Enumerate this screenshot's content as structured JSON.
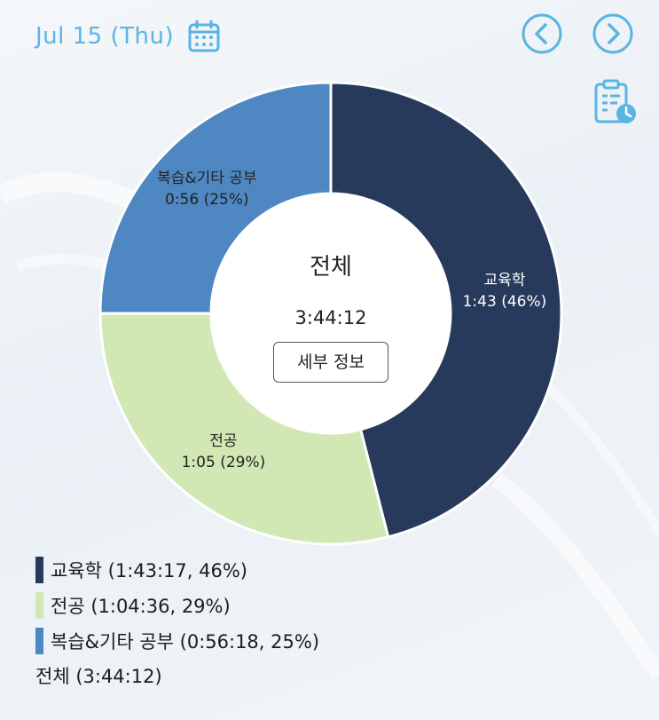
{
  "header": {
    "date": "Jul 15 (Thu)",
    "calendar_icon": "calendar-icon",
    "prev_icon": "chevron-left-circle-icon",
    "next_icon": "chevron-right-circle-icon",
    "log_icon": "clipboard-clock-icon",
    "accent_color": "#5bb4e3"
  },
  "chart_data": {
    "type": "pie",
    "style": "donut",
    "center_title": "전체",
    "center_total": "3:44:12",
    "slices": [
      {
        "name": "교육학",
        "label_time": "1:43",
        "label_pct": "(46%)",
        "value": 46,
        "color": "#283a5c"
      },
      {
        "name": "전공",
        "label_time": "1:05",
        "label_pct": "(29%)",
        "value": 29,
        "color": "#d2e8b4"
      },
      {
        "name": "복습&기타 공부",
        "label_time": "0:56",
        "label_pct": "(25%)",
        "value": 25,
        "color": "#4f87c2"
      }
    ]
  },
  "detail_button": {
    "label": "세부 정보"
  },
  "legend": {
    "items": [
      {
        "text": "교육학 (1:43:17, 46%)",
        "color": "#283a5c"
      },
      {
        "text": "전공 (1:04:36, 29%)",
        "color": "#d2e8b4"
      },
      {
        "text": "복습&기타 공부 (0:56:18, 25%)",
        "color": "#4f87c2"
      }
    ],
    "total": "전체 (3:44:12)"
  }
}
